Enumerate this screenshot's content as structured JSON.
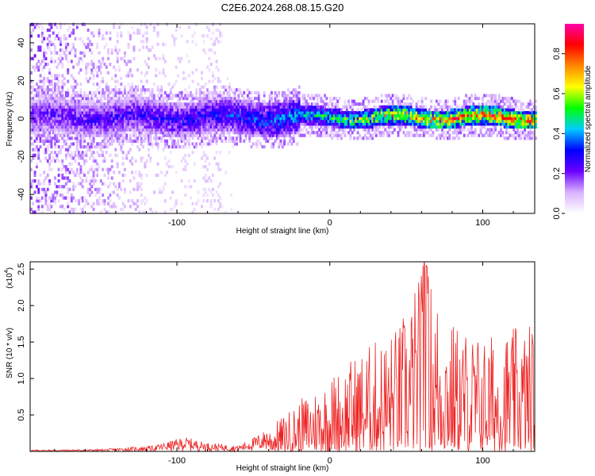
{
  "title": "C2E6.2024.268.08.15.G20",
  "chart_data": [
    {
      "type": "heatmap",
      "xlabel": "Height of straight line (km)",
      "ylabel": "Frequency (Hz)",
      "xlim": [
        -196,
        134
      ],
      "ylim": [
        -50,
        50
      ],
      "xticks": [
        -100,
        0,
        100
      ],
      "yticks": [
        -40,
        -20,
        0,
        20,
        40
      ],
      "colorbar": {
        "label": "Normalized spectral amplitude",
        "range": [
          0,
          0.95
        ],
        "ticks": [
          "0.0",
          "0.2",
          "0.4",
          "0.6",
          "0.8"
        ],
        "colormap": [
          "#ffffff",
          "#d9b3ff",
          "#6a00ff",
          "#0000ff",
          "#00ccff",
          "#00ff00",
          "#ffff00",
          "#ff8800",
          "#ff0000",
          "#ff00aa"
        ]
      },
      "ridge": {
        "description_points": [
          {
            "x": -180,
            "amp": 0.25
          },
          {
            "x": -120,
            "amp": 0.3
          },
          {
            "x": -60,
            "amp": 0.35
          },
          {
            "x": -20,
            "amp": 0.45
          },
          {
            "x": 0,
            "amp": 0.55
          },
          {
            "x": 40,
            "amp": 0.75
          },
          {
            "x": 80,
            "amp": 0.85
          },
          {
            "x": 120,
            "amp": 0.85
          }
        ],
        "center_freq": 0
      }
    },
    {
      "type": "line",
      "xlabel": "Height of straight line (km)",
      "ylabel": "SNR (10 * v/v)",
      "scale_label": "(x10",
      "scale_exp": "4",
      "xlim": [
        -196,
        134
      ],
      "ylim": [
        0,
        2.6
      ],
      "xticks": [
        -100,
        0,
        100
      ],
      "yticks": [
        "0.5",
        "1.0",
        "1.5",
        "2.0",
        "2.5"
      ],
      "color": "#ee2222",
      "envelope": [
        {
          "x": -196,
          "y": 0.02
        },
        {
          "x": -150,
          "y": 0.03
        },
        {
          "x": -115,
          "y": 0.08
        },
        {
          "x": -95,
          "y": 0.2
        },
        {
          "x": -80,
          "y": 0.12
        },
        {
          "x": -60,
          "y": 0.08
        },
        {
          "x": -45,
          "y": 0.25
        },
        {
          "x": -30,
          "y": 0.5
        },
        {
          "x": -15,
          "y": 0.8
        },
        {
          "x": 0,
          "y": 1.05
        },
        {
          "x": 20,
          "y": 1.4
        },
        {
          "x": 45,
          "y": 1.75
        },
        {
          "x": 62,
          "y": 2.6
        },
        {
          "x": 80,
          "y": 1.8
        },
        {
          "x": 100,
          "y": 1.6
        },
        {
          "x": 120,
          "y": 1.7
        },
        {
          "x": 134,
          "y": 1.8
        }
      ]
    }
  ]
}
